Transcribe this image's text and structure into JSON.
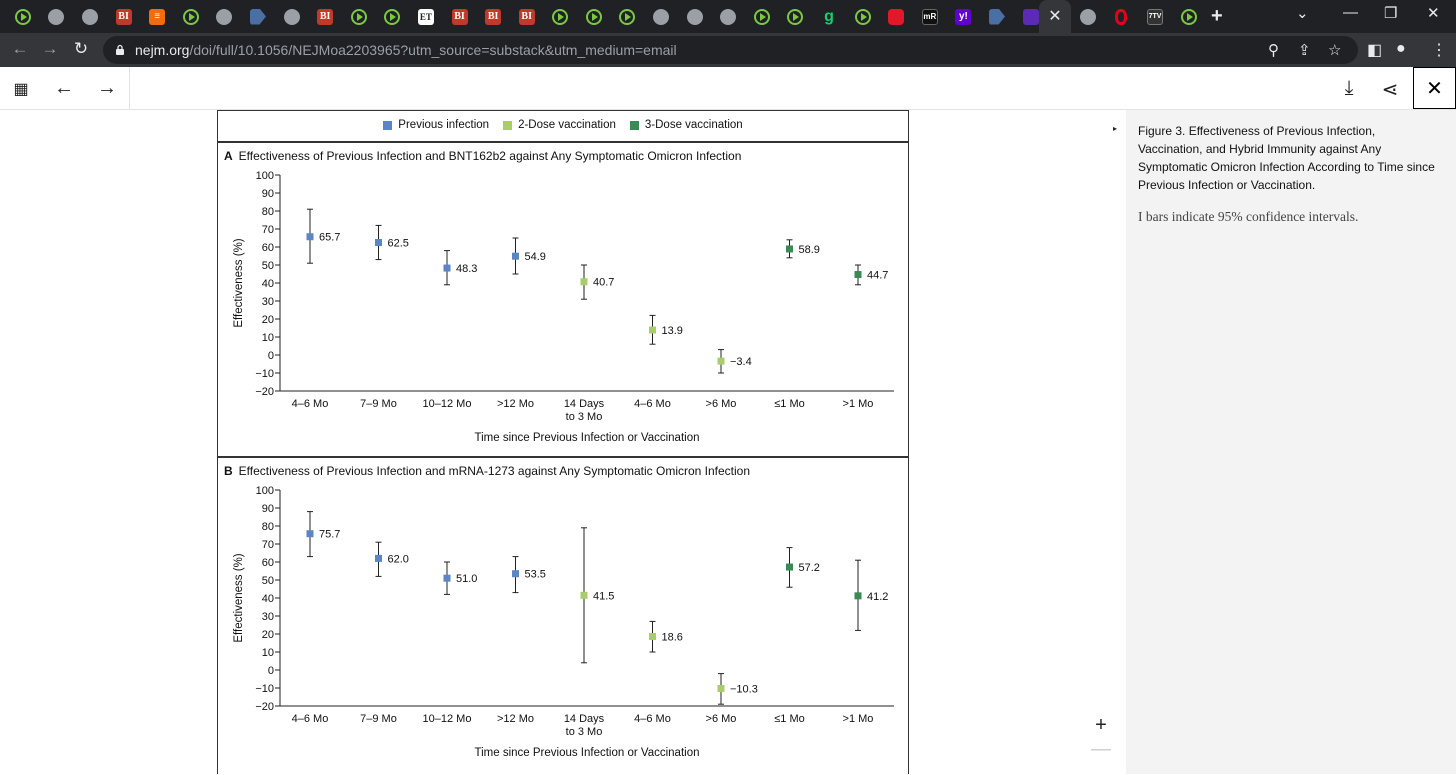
{
  "browser": {
    "tabs": [
      "play",
      "globe",
      "globe",
      "BI",
      "bars",
      "play",
      "globe",
      "arrow",
      "globe",
      "BI",
      "play",
      "play",
      "ET",
      "BI",
      "BI",
      "BI",
      "play",
      "play",
      "play",
      "globe",
      "globe",
      "globe",
      "play",
      "play",
      "g",
      "play",
      "red",
      "mR",
      "y!",
      "arrow",
      "purple"
    ],
    "active_tab_close": "✕",
    "after_tabs": [
      "globe",
      "O",
      "7TV",
      "play"
    ],
    "new_tab": "+",
    "url_host": "nejm.org",
    "url_path": "/doi/full/10.1056/NEJMoa2203965?utm_source=substack&utm_medium=email"
  },
  "figure": {
    "legend": [
      {
        "label": "Previous infection",
        "color": "#5b86c5"
      },
      {
        "label": "2-Dose vaccination",
        "color": "#a9cd6a"
      },
      {
        "label": "3-Dose vaccination",
        "color": "#3a8a55"
      }
    ],
    "panels": [
      {
        "letter": "A",
        "title": "Effectiveness of Previous Infection and BNT162b2 against Any Symptomatic Omicron Infection"
      },
      {
        "letter": "B",
        "title": "Effectiveness of Previous Infection and mRNA-1273 against Any Symptomatic Omicron Infection"
      }
    ]
  },
  "chart_data": [
    {
      "type": "scatter",
      "title": "Effectiveness of Previous Infection and BNT162b2 against Any Symptomatic Omicron Infection",
      "xlabel": "Time since Previous Infection or Vaccination",
      "ylabel": "Effectiveness (%)",
      "ylim": [
        -20,
        100
      ],
      "yticks": [
        100,
        90,
        80,
        70,
        60,
        50,
        40,
        30,
        20,
        10,
        0,
        -10,
        -20
      ],
      "categories": [
        "4–6 Mo",
        "7–9 Mo",
        "10–12 Mo",
        ">12 Mo",
        "14 Days\nto 3 Mo",
        "4–6 Mo",
        ">6 Mo",
        "≤1 Mo",
        ">1 Mo"
      ],
      "groups": [
        "Previous infection",
        "Previous infection",
        "Previous infection",
        "Previous infection",
        "2-Dose vaccination",
        "2-Dose vaccination",
        "2-Dose vaccination",
        "3-Dose vaccination",
        "3-Dose vaccination"
      ],
      "values": [
        65.7,
        62.5,
        48.3,
        54.9,
        40.7,
        13.9,
        -3.4,
        58.9,
        44.7
      ],
      "labels": [
        "65.7",
        "62.5",
        "48.3",
        "54.9",
        "40.7",
        "13.9",
        "−3.4",
        "58.9",
        "44.7"
      ],
      "ci_low": [
        51,
        53,
        39,
        45,
        31,
        6,
        -10,
        54,
        39
      ],
      "ci_high": [
        81,
        72,
        58,
        65,
        50,
        22,
        3,
        64,
        50
      ]
    },
    {
      "type": "scatter",
      "title": "Effectiveness of Previous Infection and mRNA-1273 against Any Symptomatic Omicron Infection",
      "xlabel": "Time since Previous Infection or Vaccination",
      "ylabel": "Effectiveness (%)",
      "ylim": [
        -20,
        100
      ],
      "yticks": [
        100,
        90,
        80,
        70,
        60,
        50,
        40,
        30,
        20,
        10,
        0,
        -10,
        -20
      ],
      "categories": [
        "4–6 Mo",
        "7–9 Mo",
        "10–12 Mo",
        ">12 Mo",
        "14 Days\nto 3 Mo",
        "4–6 Mo",
        ">6 Mo",
        "≤1 Mo",
        ">1 Mo"
      ],
      "groups": [
        "Previous infection",
        "Previous infection",
        "Previous infection",
        "Previous infection",
        "2-Dose vaccination",
        "2-Dose vaccination",
        "2-Dose vaccination",
        "3-Dose vaccination",
        "3-Dose vaccination"
      ],
      "values": [
        75.7,
        62.0,
        51.0,
        53.5,
        41.5,
        18.6,
        -10.3,
        57.2,
        41.2
      ],
      "labels": [
        "75.7",
        "62.0",
        "51.0",
        "53.5",
        "41.5",
        "18.6",
        "−10.3",
        "57.2",
        "41.2"
      ],
      "ci_low": [
        63,
        52,
        42,
        43,
        4,
        10,
        -19,
        46,
        22
      ],
      "ci_high": [
        88,
        71,
        60,
        63,
        79,
        27,
        -2,
        68,
        61
      ]
    }
  ],
  "caption": {
    "title": "Figure 3. Effectiveness of Previous Infection, Vaccination, and Hybrid Immunity against Any Symptomatic Omicron Infection According to Time since Previous Infection or Vaccination.",
    "note": "I bars indicate 95% confidence intervals."
  }
}
